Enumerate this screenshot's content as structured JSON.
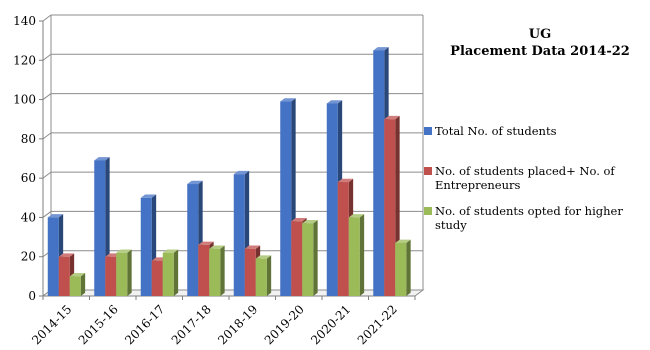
{
  "chart_data": {
    "type": "bar",
    "title_lines": [
      "UG",
      "Placement Data 2014-22"
    ],
    "categories": [
      "2014-15",
      "2015-16",
      "2016-17",
      "2017-18",
      "2018-19",
      "2019-20",
      "2020-21",
      "2021-22"
    ],
    "series": [
      {
        "name": "Total No. of students",
        "color": "#4472C4",
        "values": [
          40,
          69,
          50,
          57,
          62,
          99,
          98,
          125
        ]
      },
      {
        "name": "No. of students placed+ No. of Entrepreneurs",
        "color": "#C0504D",
        "values": [
          20,
          20,
          18,
          26,
          24,
          38,
          58,
          90
        ]
      },
      {
        "name": "No. of students opted for higher study",
        "color": "#9BBB59",
        "values": [
          10,
          22,
          22,
          24,
          19,
          37,
          40,
          27
        ]
      }
    ],
    "ylim": [
      0,
      140
    ],
    "yticks": [
      0,
      20,
      40,
      60,
      80,
      100,
      120,
      140
    ],
    "grid": true,
    "legend_position": "right"
  }
}
